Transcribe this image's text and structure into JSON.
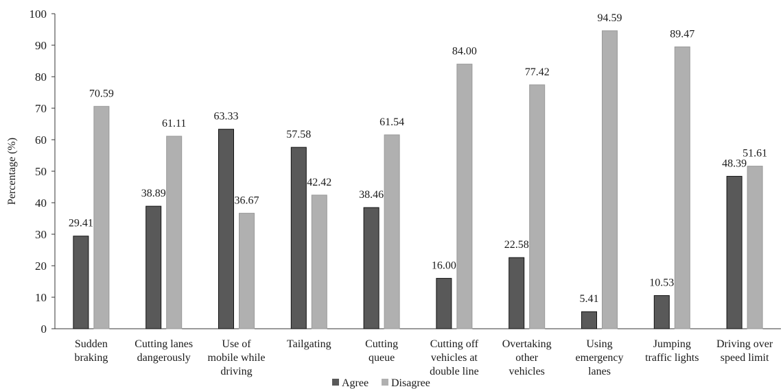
{
  "chart_data": {
    "type": "bar",
    "title": "",
    "ylabel": "Percentage (%)",
    "xlabel": "",
    "ylim": [
      0,
      100
    ],
    "yticks": [
      0,
      10,
      20,
      30,
      40,
      50,
      60,
      70,
      80,
      90,
      100
    ],
    "grid": false,
    "legend_position": "bottom",
    "categories": [
      [
        "Sudden",
        "braking"
      ],
      [
        "Cutting lanes",
        "dangerously"
      ],
      [
        "Use of",
        "mobile while",
        "driving"
      ],
      [
        "Tailgating"
      ],
      [
        "Cutting",
        "queue"
      ],
      [
        "Cutting off",
        "vehicles at",
        "double line"
      ],
      [
        "Overtaking",
        "other",
        "vehicles"
      ],
      [
        "Using",
        "emergency",
        "lanes"
      ],
      [
        "Jumping",
        "traffic lights"
      ],
      [
        "Driving over",
        "speed limit"
      ]
    ],
    "series": [
      {
        "name": "Agree",
        "color": "#595959",
        "values": [
          29.41,
          38.89,
          63.33,
          57.58,
          38.46,
          16.0,
          22.58,
          5.41,
          10.53,
          48.39
        ],
        "labels": [
          "29.41",
          "38.89",
          "63.33",
          "57.58",
          "38.46",
          "16.00",
          "22.58",
          "5.41",
          "10.53",
          "48.39"
        ]
      },
      {
        "name": "Disagree",
        "color": "#b0b0b0",
        "values": [
          70.59,
          61.11,
          36.67,
          42.42,
          61.54,
          84.0,
          77.42,
          94.59,
          89.47,
          51.61
        ],
        "labels": [
          "70.59",
          "61.11",
          "36.67",
          "42.42",
          "61.54",
          "84.00",
          "77.42",
          "94.59",
          "89.47",
          "51.61"
        ]
      }
    ]
  }
}
